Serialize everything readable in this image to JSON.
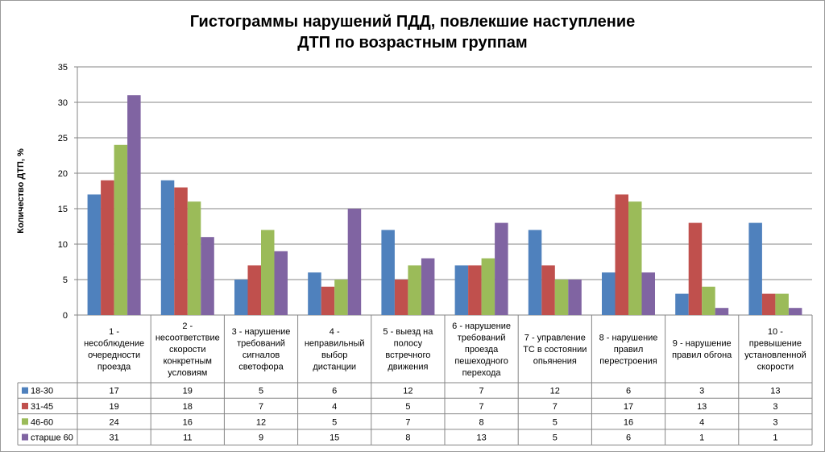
{
  "chart_data": {
    "type": "bar",
    "title_lines": [
      "Гистограммы нарушений ПДД, повлекшие наступление",
      "ДТП по возрастным группам"
    ],
    "ylabel": "Количество ДТП, %",
    "xlabel": "",
    "ylim": [
      0,
      35
    ],
    "y_ticks": [
      0,
      5,
      10,
      15,
      20,
      25,
      30,
      35
    ],
    "grid": true,
    "legend": "data-table",
    "categories": [
      [
        "1 -",
        "несоблюдение",
        "очередности",
        "проезда"
      ],
      [
        "2 -",
        "несоответствие",
        "скорости",
        "конкретным",
        "условиям"
      ],
      [
        "3 - нарушение",
        "требований",
        "сигналов",
        "светофора"
      ],
      [
        "4 -",
        "неправильный",
        "выбор",
        "дистанции"
      ],
      [
        "5 - выезд на",
        "полосу",
        "встречного",
        "движения"
      ],
      [
        "6 - нарушение",
        "требований",
        "проезда",
        "пешеходного",
        "перехода"
      ],
      [
        "7 - управление",
        "ТС в состоянии",
        "опьянения"
      ],
      [
        "8 - нарушение",
        "правил",
        "перестроения"
      ],
      [
        "9 - нарушение",
        "правил обгона"
      ],
      [
        "10 -",
        "превышение",
        "установленной",
        "скорости"
      ]
    ],
    "series": [
      {
        "name": "18-30",
        "color": "#4F81BD",
        "values": [
          17,
          19,
          5,
          6,
          12,
          7,
          12,
          6,
          3,
          13
        ]
      },
      {
        "name": "31-45",
        "color": "#C0504D",
        "values": [
          19,
          18,
          7,
          4,
          5,
          7,
          7,
          17,
          13,
          3
        ]
      },
      {
        "name": "46-60",
        "color": "#9BBB59",
        "values": [
          24,
          16,
          12,
          5,
          7,
          8,
          5,
          16,
          4,
          3
        ]
      },
      {
        "name": "старше 60",
        "color": "#8064A2",
        "values": [
          31,
          11,
          9,
          15,
          8,
          13,
          5,
          6,
          1,
          1
        ]
      }
    ]
  }
}
